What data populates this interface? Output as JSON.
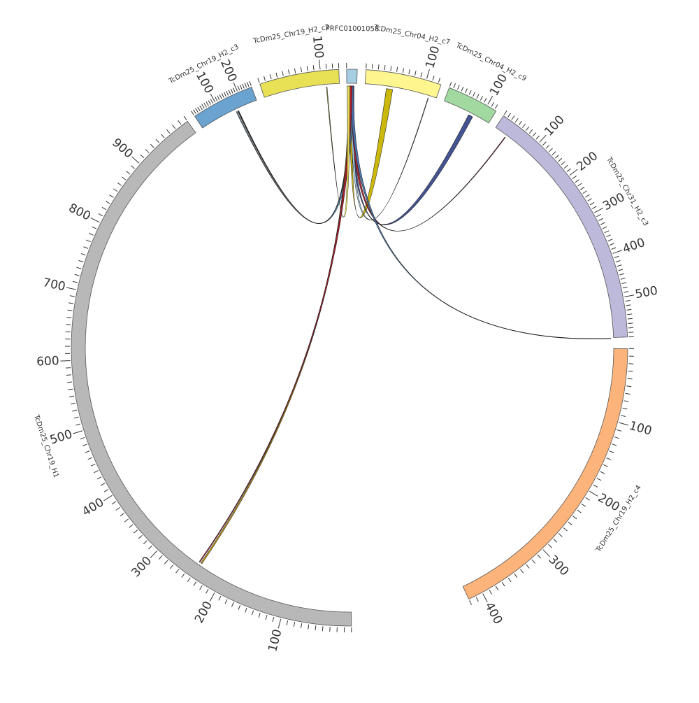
{
  "chromosomes": [
    {
      "name": "TcDm25_Chr19_H2_c2",
      "color": "#e8e055",
      "start_deg": 341.2,
      "end_deg": 357.8,
      "length": 130
    },
    {
      "name": "PRFC01001058",
      "color": "#a6cee3",
      "start_deg": 359.4,
      "end_deg": 1.6,
      "length": 5
    },
    {
      "name": "TcDm25_Chr04_H2_c7",
      "color": "#fff68f",
      "start_deg": 3.4,
      "end_deg": 19.2,
      "length": 125
    },
    {
      "name": "TcDm25_Chr04_H2_c9",
      "color": "#a2d9a1",
      "start_deg": 21.0,
      "end_deg": 31.8,
      "length": 125
    },
    {
      "name": "TcDm25_Chr31_H2_c3",
      "color": "#bcb9da",
      "start_deg": 33.6,
      "end_deg": 87.8,
      "length": 590
    },
    {
      "name": "TcDm25_Chr19_H2_c4",
      "color": "#fdb47b",
      "start_deg": 90.2,
      "end_deg": 154.6,
      "length": 420
    },
    {
      "name": "TcDm25_Chr19_H1",
      "color": "#b8b8b8",
      "start_deg": 179.6,
      "end_deg": 324.4,
      "length": 990
    },
    {
      "name": "TcDm25_Chr19_H2_c3",
      "color": "#6aa2d0",
      "start_deg": 326.2,
      "end_deg": 339.4,
      "length": 260
    }
  ],
  "ticks": [
    {
      "chrom": 0,
      "labels": [
        "100"
      ]
    },
    {
      "chrom": 1,
      "labels": []
    },
    {
      "chrom": 2,
      "labels": [
        "100"
      ]
    },
    {
      "chrom": 3,
      "labels": [
        "100"
      ]
    },
    {
      "chrom": 4,
      "labels": [
        "100",
        "200",
        "300",
        "400",
        "500"
      ]
    },
    {
      "chrom": 5,
      "labels": [
        "100",
        "200",
        "300",
        "400"
      ]
    },
    {
      "chrom": 6,
      "labels": [
        "100",
        "200",
        "300",
        "400",
        "500",
        "600",
        "700",
        "800",
        "900"
      ]
    },
    {
      "chrom": 7,
      "labels": [
        "100",
        "200"
      ]
    }
  ],
  "links": [
    {
      "from_deg": 0.3,
      "to_deg": 8.8,
      "to_width": 1.4,
      "color": "#c8b400"
    },
    {
      "from_deg": 0.4,
      "to_deg": 27.6,
      "to_width": 1.0,
      "color": "#3a4b8c"
    },
    {
      "from_deg": 0.2,
      "to_deg": 334.8,
      "to_width": 0.25,
      "color": "#222222"
    },
    {
      "from_deg": 0.5,
      "to_deg": 334.4,
      "to_width": 0.15,
      "color": "#6aa2d0"
    },
    {
      "from_deg": 0.6,
      "to_deg": 17.5,
      "to_width": 0.12,
      "color": "#a6cee3"
    },
    {
      "from_deg": 0.7,
      "to_deg": 36.5,
      "to_width": 0.15,
      "color": "#b2182b"
    },
    {
      "from_deg": 0.6,
      "to_deg": 88.0,
      "to_width": 0.1,
      "color": "#4575b4"
    },
    {
      "from_deg": 0.1,
      "to_deg": 214.5,
      "to_width": 0.3,
      "color": "#d4a000"
    },
    {
      "from_deg": 0.3,
      "to_deg": 215.0,
      "to_width": 0.2,
      "color": "#b2182b"
    },
    {
      "from_deg": 359.8,
      "to_deg": 355.0,
      "to_width": 0.15,
      "color": "#e8e055"
    }
  ]
}
